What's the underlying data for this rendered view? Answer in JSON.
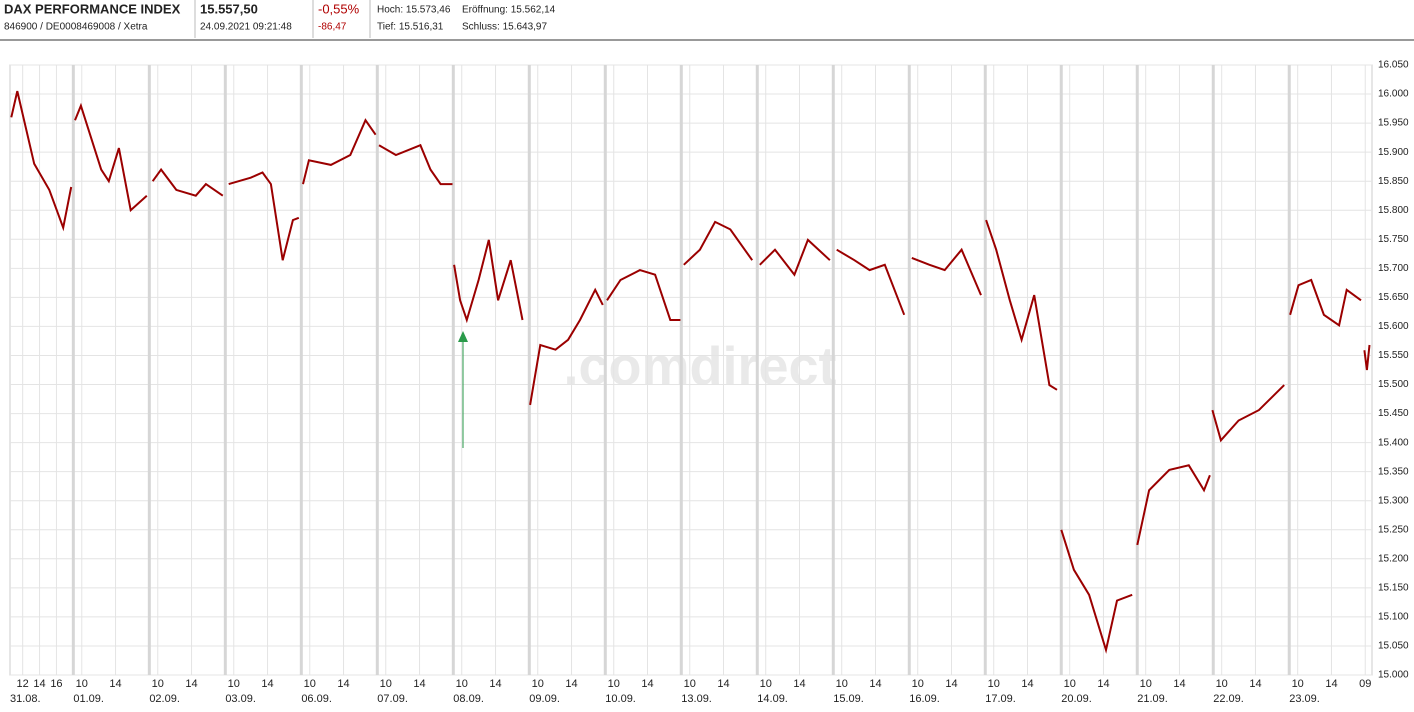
{
  "header": {
    "name": "DAX PERFORMANCE INDEX",
    "price": "15.557,50",
    "id": "846900 / DE0008469008 / Xetra",
    "datetime": "24.09.2021 09:21:48",
    "change_pct": "-0,55%",
    "change_abs": "-86,47",
    "high": "Hoch: 15.573,46",
    "open": "Eröffnung: 15.562,14",
    "low": "Tief: 15.516,31",
    "close": "Schluss: 15.643,97"
  },
  "chart_data": {
    "type": "line",
    "watermark": ".comdirect",
    "color": "#9b0000",
    "grid": true,
    "x": [
      1.65,
      2.36,
      4.37,
      6.15,
      7.8,
      8.75,
      null,
      9.2,
      9.9,
      12.3,
      13.2,
      14.4,
      15.8,
      17.7,
      null,
      18.4,
      19.4,
      21.2,
      23.5,
      24.7,
      26.7,
      null,
      27.4,
      30.0,
      31.4,
      32.4,
      33.8,
      35.0,
      35.7,
      null,
      36.2,
      36.9,
      39.5,
      41.8,
      43.6,
      44.8,
      null,
      45.2,
      47.2,
      50.1,
      51.3,
      52.5,
      53.9,
      null,
      54.1,
      54.8,
      55.6,
      57.0,
      58.2,
      59.3,
      60.8,
      62.2,
      null,
      63.1,
      64.3,
      66.1,
      67.6,
      69.0,
      70.8,
      71.7,
      null,
      72.2,
      73.8,
      76.1,
      77.9,
      79.7,
      80.9,
      null,
      81.3,
      83.2,
      85.0,
      86.8,
      89.4,
      null,
      90.3,
      92.1,
      94.4,
      96.0,
      98.6,
      null,
      99.4,
      101.5,
      103.3,
      105.1,
      107.4,
      null,
      108.3,
      110.4,
      112.2,
      114.2,
      116.5,
      null,
      117.1,
      118.3,
      119.9,
      121.3,
      122.8,
      124.6,
      125.5,
      null,
      126.0,
      127.5,
      129.3,
      131.3,
      132.6,
      134.4,
      null,
      135.0,
      136.4,
      138.8,
      141.1,
      142.9,
      143.6,
      null,
      143.9,
      144.9,
      147.0,
      149.4,
      152.4,
      null,
      153.1,
      154.1,
      155.6,
      157.1,
      158.9,
      159.8,
      161.5,
      null,
      161.9,
      162.2,
      162.5
    ],
    "values": [
      15960,
      16005,
      15880,
      15835,
      15770,
      15840,
      null,
      15955,
      15980,
      15870,
      15850,
      15907,
      15800,
      15825,
      null,
      15850,
      15870,
      15835,
      15825,
      15845,
      15825,
      null,
      15845,
      15856,
      15865,
      15845,
      15714,
      15783,
      15787,
      null,
      15845,
      15886,
      15878,
      15895,
      15955,
      15930,
      null,
      15912,
      15895,
      15912,
      15870,
      15845,
      15845,
      null,
      15706,
      15645,
      15611,
      15680,
      15749,
      15645,
      15714,
      15611,
      null,
      15465,
      15568,
      15560,
      15577,
      15611,
      15663,
      15637,
      null,
      15645,
      15680,
      15697,
      15689,
      15611,
      15611,
      null,
      15706,
      15732,
      15780,
      15767,
      15714,
      null,
      15706,
      15732,
      15689,
      15749,
      15714,
      null,
      15732,
      15714,
      15697,
      15706,
      15620,
      null,
      15718,
      15706,
      15697,
      15732,
      15654,
      null,
      15783,
      15732,
      15645,
      15577,
      15654,
      15499,
      15491,
      null,
      15250,
      15181,
      15138,
      15043,
      15128,
      15138,
      null,
      15224,
      15318,
      15353,
      15361,
      15318,
      15344,
      null,
      15456,
      15404,
      15438,
      15456,
      15499,
      null,
      15620,
      15671,
      15680,
      15620,
      15602,
      15663,
      15645,
      null,
      15559,
      15525,
      15568
    ],
    "xlim": [
      1.5,
      162.8
    ],
    "xticks": [
      {
        "value": 3,
        "label": "12"
      },
      {
        "value": 5,
        "label": "14"
      },
      {
        "value": 7,
        "label": "16"
      },
      {
        "value": 10,
        "label": "10"
      },
      {
        "value": 14,
        "label": "14"
      },
      {
        "value": 19,
        "label": "10"
      },
      {
        "value": 23,
        "label": "14"
      },
      {
        "value": 28,
        "label": "10"
      },
      {
        "value": 32,
        "label": "14"
      },
      {
        "value": 37,
        "label": "10"
      },
      {
        "value": 41,
        "label": "14"
      },
      {
        "value": 46,
        "label": "10"
      },
      {
        "value": 50,
        "label": "14"
      },
      {
        "value": 55,
        "label": "10"
      },
      {
        "value": 59,
        "label": "14"
      },
      {
        "value": 64,
        "label": "10"
      },
      {
        "value": 68,
        "label": "14"
      },
      {
        "value": 73,
        "label": "10"
      },
      {
        "value": 77,
        "label": "14"
      },
      {
        "value": 82,
        "label": "10"
      },
      {
        "value": 86,
        "label": "14"
      },
      {
        "value": 91,
        "label": "10"
      },
      {
        "value": 95,
        "label": "14"
      },
      {
        "value": 100,
        "label": "10"
      },
      {
        "value": 104,
        "label": "14"
      },
      {
        "value": 109,
        "label": "10"
      },
      {
        "value": 113,
        "label": "14"
      },
      {
        "value": 118,
        "label": "10"
      },
      {
        "value": 122,
        "label": "14"
      },
      {
        "value": 127,
        "label": "10"
      },
      {
        "value": 131,
        "label": "14"
      },
      {
        "value": 136,
        "label": "10"
      },
      {
        "value": 140,
        "label": "14"
      },
      {
        "value": 145,
        "label": "10"
      },
      {
        "value": 149,
        "label": "14"
      },
      {
        "value": 154,
        "label": "10"
      },
      {
        "value": 158,
        "label": "14"
      },
      {
        "value": 162,
        "label": "09"
      }
    ],
    "date_ticks": [
      {
        "value": 0,
        "label": "31.08."
      },
      {
        "value": 9,
        "label": "01.09."
      },
      {
        "value": 18,
        "label": "02.09."
      },
      {
        "value": 27,
        "label": "03.09."
      },
      {
        "value": 36,
        "label": "06.09."
      },
      {
        "value": 45,
        "label": "07.09."
      },
      {
        "value": 54,
        "label": "08.09."
      },
      {
        "value": 63,
        "label": "09.09."
      },
      {
        "value": 72,
        "label": "10.09."
      },
      {
        "value": 81,
        "label": "13.09."
      },
      {
        "value": 90,
        "label": "14.09."
      },
      {
        "value": 99,
        "label": "15.09."
      },
      {
        "value": 108,
        "label": "16.09."
      },
      {
        "value": 117,
        "label": "17.09."
      },
      {
        "value": 126,
        "label": "20.09."
      },
      {
        "value": 135,
        "label": "21.09."
      },
      {
        "value": 144,
        "label": "22.09."
      },
      {
        "value": 153,
        "label": "23.09."
      }
    ],
    "ylim": [
      15000,
      16050
    ],
    "yticks": [
      {
        "value": 15000,
        "label": "15.000"
      },
      {
        "value": 15050,
        "label": "15.050"
      },
      {
        "value": 15100,
        "label": "15.100"
      },
      {
        "value": 15150,
        "label": "15.150"
      },
      {
        "value": 15200,
        "label": "15.200"
      },
      {
        "value": 15250,
        "label": "15.250"
      },
      {
        "value": 15300,
        "label": "15.300"
      },
      {
        "value": 15350,
        "label": "15.350"
      },
      {
        "value": 15400,
        "label": "15.400"
      },
      {
        "value": 15450,
        "label": "15.450"
      },
      {
        "value": 15500,
        "label": "15.500"
      },
      {
        "value": 15550,
        "label": "15.550"
      },
      {
        "value": 15600,
        "label": "15.600"
      },
      {
        "value": 15650,
        "label": "15.650"
      },
      {
        "value": 15700,
        "label": "15.700"
      },
      {
        "value": 15750,
        "label": "15.750"
      },
      {
        "value": 15800,
        "label": "15.800"
      },
      {
        "value": 15850,
        "label": "15.850"
      },
      {
        "value": 15900,
        "label": "15.900"
      },
      {
        "value": 15950,
        "label": "15.950"
      },
      {
        "value": 16000,
        "label": "16.000"
      },
      {
        "value": 16050,
        "label": "16.050"
      }
    ]
  }
}
